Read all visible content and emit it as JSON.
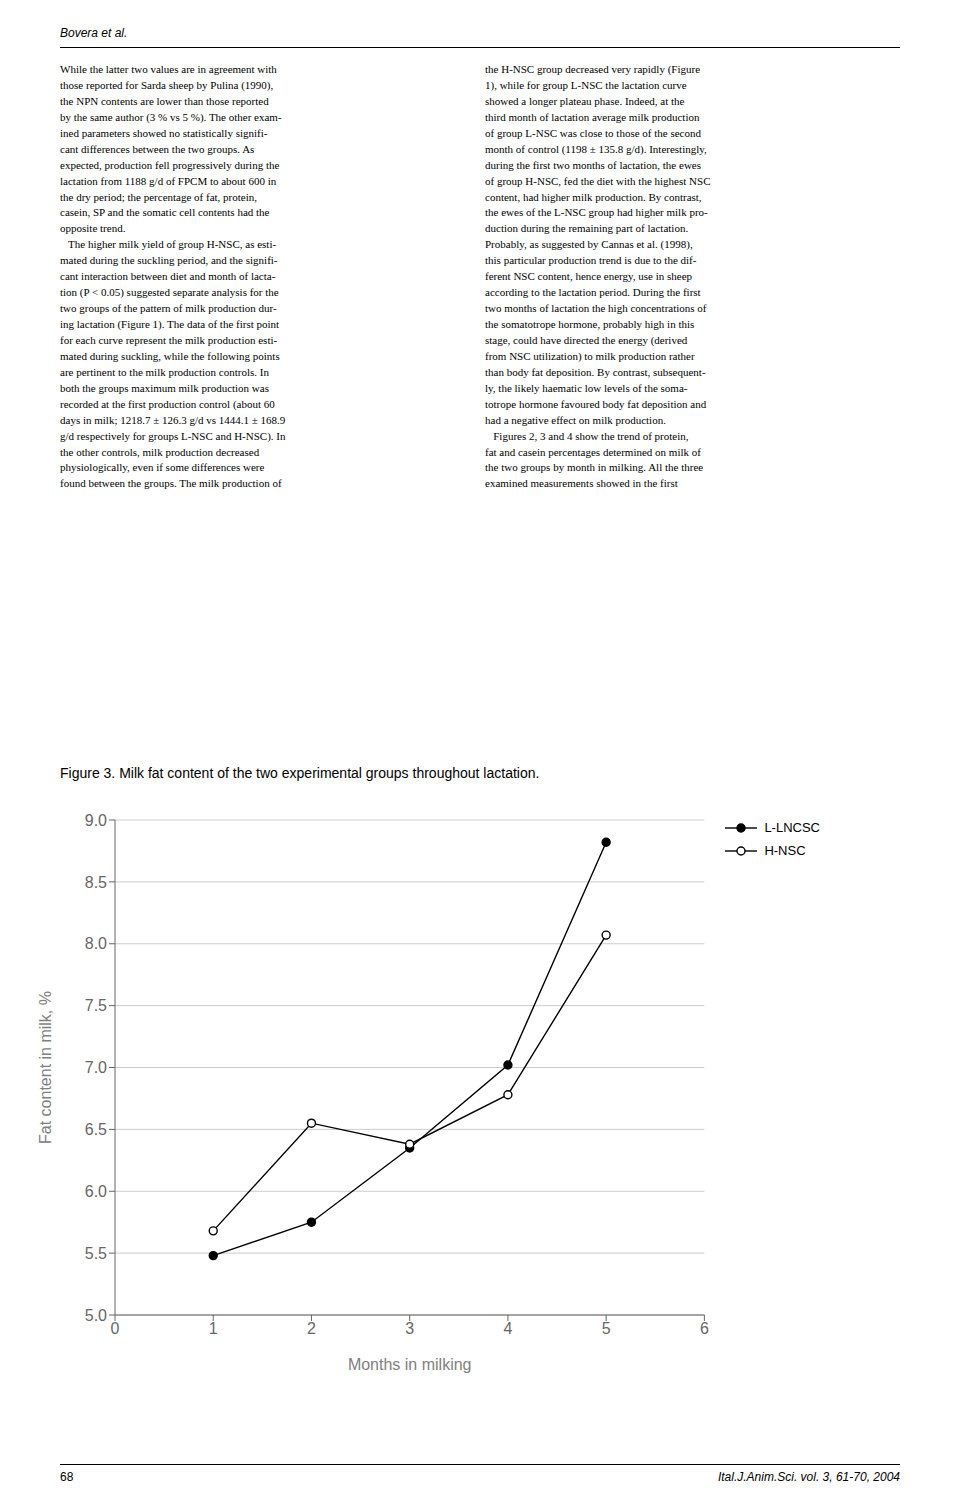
{
  "chart_data": {
    "type": "line",
    "title": "Figure 3. Milk fat content of the two experimental groups throughout lactation.",
    "x_label": "Months in milking",
    "y_label": "Fat content in milk, %",
    "x": [
      1,
      2,
      3,
      4,
      5
    ],
    "series": [
      {
        "name": "L-LNCSC",
        "color": "#000000",
        "marker": "filled_circle",
        "values": [
          5.48,
          5.75,
          6.35,
          7.02,
          8.82
        ]
      },
      {
        "name": "H-NSC",
        "color": "#000000",
        "marker": "open_circle",
        "values": [
          5.68,
          6.55,
          6.38,
          6.78,
          8.07
        ]
      }
    ],
    "xlim": [
      0,
      6
    ],
    "xticks": [
      0,
      1,
      2,
      3,
      4,
      5,
      6
    ],
    "ylim": [
      5.0,
      9.0
    ],
    "yticks": [
      {
        "value": 5.0,
        "label": "5.0"
      },
      5.5,
      {
        "value": 6.0,
        "label": "6.0"
      },
      6.5,
      {
        "value": 7.0,
        "label": "7.0"
      },
      7.5,
      {
        "value": 8.0,
        "label": "8.0"
      },
      8.5,
      {
        "value": 9.0,
        "label": "9.0"
      }
    ],
    "grid": "y",
    "legend": "right",
    "annotations": [
      "Bovera et al.",
      "While the latter two values are in agreement with\nthose reported for Sarda sheep by Pulina (1990),\nthe NPN contents are lower than those reported\nby the same author (3 % vs 5 %). The other exam-\nined parameters showed no statistically signifi-\ncant differences between the two groups. As\nexpected, production fell progressively during the\nlactation from 1188 g/d of FPCM to about 600 in\nthe dry period; the percentage of fat, protein,\ncasein, SP and the somatic cell contents had the\nopposite trend.\n   The higher milk yield of group H-NSC, as esti-\nmated during the suckling period, and the signifi-\ncant interaction between diet and month of lacta-\ntion (P < 0.05) suggested separate analysis for the\ntwo groups of the pattern of milk production dur-\ning lactation (Figure 1). The data of the first point\nfor each curve represent the milk production esti-\nmated during suckling, while the following points\nare pertinent to the milk production controls. In\nboth the groups maximum milk production was\nrecorded at the first production control (about 60\ndays in milk; 1218.7 ± 126.3 g/d vs 1444.1 ± 168.9\ng/d respectively for groups L-NSC and H-NSC). In\nthe other controls, milk production decreased\nphysiologically, even if some differences were\nfound between the groups. The milk production of",
      "the H-NSC group decreased very rapidly (Figure\n1), while for group L-NSC the lactation curve\nshowed a longer plateau phase. Indeed, at the\nthird month of lactation average milk production\nof group L-NSC was close to those of the second\nmonth of control (1198 ± 135.8 g/d). Interestingly,\nduring the first two months of lactation, the ewes\nof group H-NSC, fed the diet with the highest NSC\ncontent, had higher milk production. By contrast,\nthe ewes of the L-NSC group had higher milk pro-\nduction during the remaining part of lactation.\nProbably, as suggested by Cannas et al. (1998),\nthis particular production trend is due to the dif-\nferent NSC content, hence energy, use in sheep\naccording to the lactation period. During the first\ntwo months of lactation the high concentrations of\nthe somatotrope hormone, probably high in this\nstage, could have directed the energy (derived\nfrom NSC utilization) to milk production rather\nthan body fat deposition. By contrast, subsequent-\nly, the likely haematic low levels of the soma-\ntotrope hormone favoured body fat deposition and\nhad a negative effect on milk production.\n   Figures 2, 3 and 4 show the trend of protein,\nfat and casein percentages determined on milk of\nthe two groups by month in milking. All the three\nexamined measurements showed in the first",
      "68",
      "Ital.J.Anim.Sci. vol. 3, 61-70, 2004"
    ]
  }
}
